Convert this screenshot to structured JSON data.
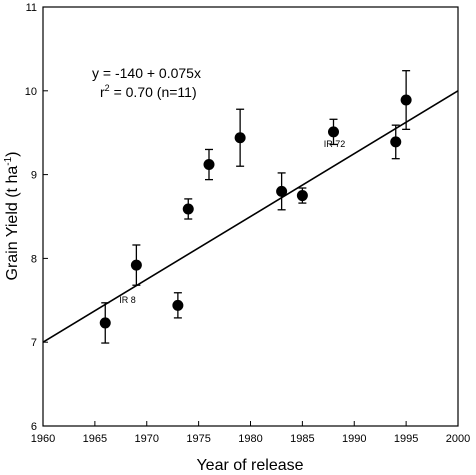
{
  "chart_data": {
    "type": "scatter",
    "xlabel": "Year of release",
    "ylabel": "Grain Yield (t ha",
    "ylabel_sup": "-1",
    "xlim": [
      1960,
      2000
    ],
    "ylim": [
      6,
      11
    ],
    "xticks": [
      1960,
      1965,
      1970,
      1975,
      1980,
      1985,
      1990,
      1995,
      2000
    ],
    "yticks": [
      6,
      7,
      8,
      9,
      10,
      11
    ],
    "grid": false,
    "points": [
      {
        "x": 1966,
        "y": 7.23,
        "err": 0.24
      },
      {
        "x": 1969,
        "y": 7.92,
        "err": 0.24
      },
      {
        "x": 1973,
        "y": 7.44,
        "err": 0.15
      },
      {
        "x": 1974,
        "y": 8.59,
        "err": 0.12
      },
      {
        "x": 1976,
        "y": 9.12,
        "err": 0.18
      },
      {
        "x": 1979,
        "y": 9.44,
        "err": 0.34
      },
      {
        "x": 1983,
        "y": 8.8,
        "err": 0.22
      },
      {
        "x": 1985,
        "y": 8.75,
        "err": 0.09
      },
      {
        "x": 1988,
        "y": 9.51,
        "err": 0.15
      },
      {
        "x": 1994,
        "y": 9.39,
        "err": 0.2
      },
      {
        "x": 1995,
        "y": 9.89,
        "err": 0.35
      }
    ],
    "point_labels": [
      {
        "text": "IR 8",
        "x": 1966
      },
      {
        "text": "IR 72",
        "x": 1994
      }
    ],
    "regression": {
      "intercept": -140,
      "slope": 0.075
    },
    "annotation": {
      "line1": "y = -140 + 0.075x",
      "line2_prefix": "r",
      "line2_sup": "2",
      "line2_suffix": " = 0.70 (n=11)"
    }
  }
}
